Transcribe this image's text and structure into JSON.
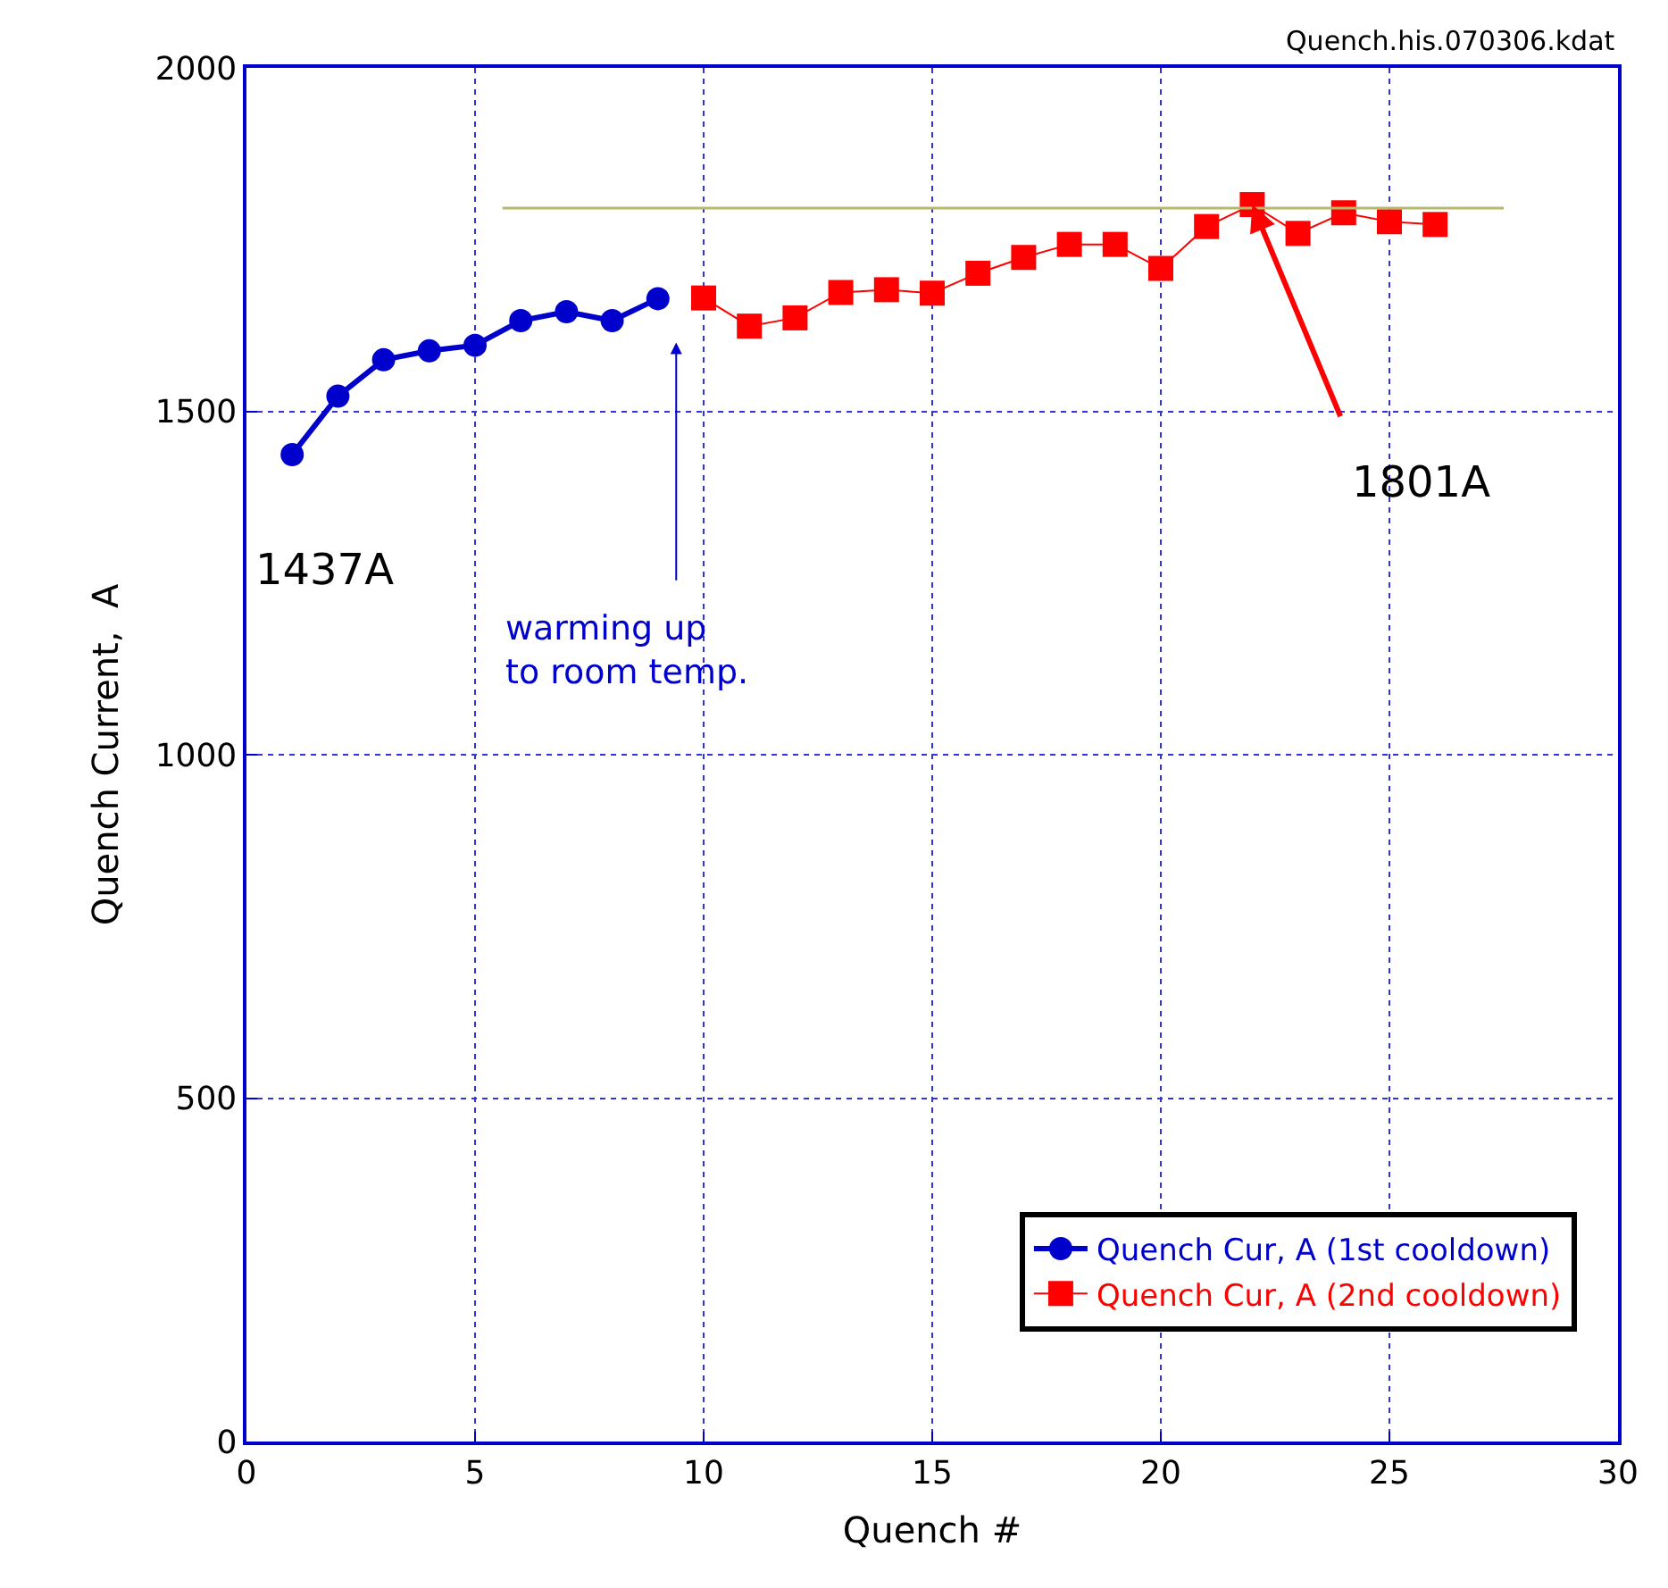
{
  "chart_data": {
    "type": "line",
    "xlabel": "Quench #",
    "ylabel": "Quench Current,  A",
    "xlim": [
      0,
      30
    ],
    "xticks": [
      0,
      5,
      10,
      15,
      20,
      25,
      30
    ],
    "ylim": [
      0,
      2000
    ],
    "yticks": [
      0,
      500,
      1000,
      1500,
      2000
    ],
    "grid": true,
    "legend": "bottom right",
    "series": [
      {
        "name": "Quench Cur, A (1st cooldown)",
        "color": "#0000cc",
        "marker": "circle",
        "line_style": "solid",
        "x": [
          1,
          2,
          3,
          4,
          5,
          6,
          7,
          8,
          9
        ],
        "values": [
          1437,
          1522,
          1575,
          1588,
          1596,
          1632,
          1645,
          1632,
          1664
        ]
      },
      {
        "name": "Quench Cur, A (2nd cooldown)",
        "color": "#ff0000",
        "marker": "square",
        "line_style": "solid",
        "x": [
          10,
          11,
          12,
          13,
          14,
          15,
          16,
          17,
          18,
          19,
          20,
          21,
          22,
          23,
          24,
          25,
          26
        ],
        "values": [
          1665,
          1624,
          1636,
          1673,
          1677,
          1672,
          1701,
          1724,
          1743,
          1743,
          1708,
          1769,
          1801,
          1759,
          1789,
          1776,
          1772
        ]
      },
      {
        "color": "#b5b96e",
        "marker": "none",
        "line_style": "solid",
        "x": [
          5.6,
          27.5
        ],
        "values": [
          1796,
          1796
        ]
      }
    ],
    "annotations": [
      {
        "text": "1437A",
        "x": 1,
        "y": 1437
      },
      {
        "text": "1801A",
        "x": 22,
        "y": 1801
      },
      "warming up\nto room temp.",
      "Quench.his.070306.kdat"
    ]
  }
}
